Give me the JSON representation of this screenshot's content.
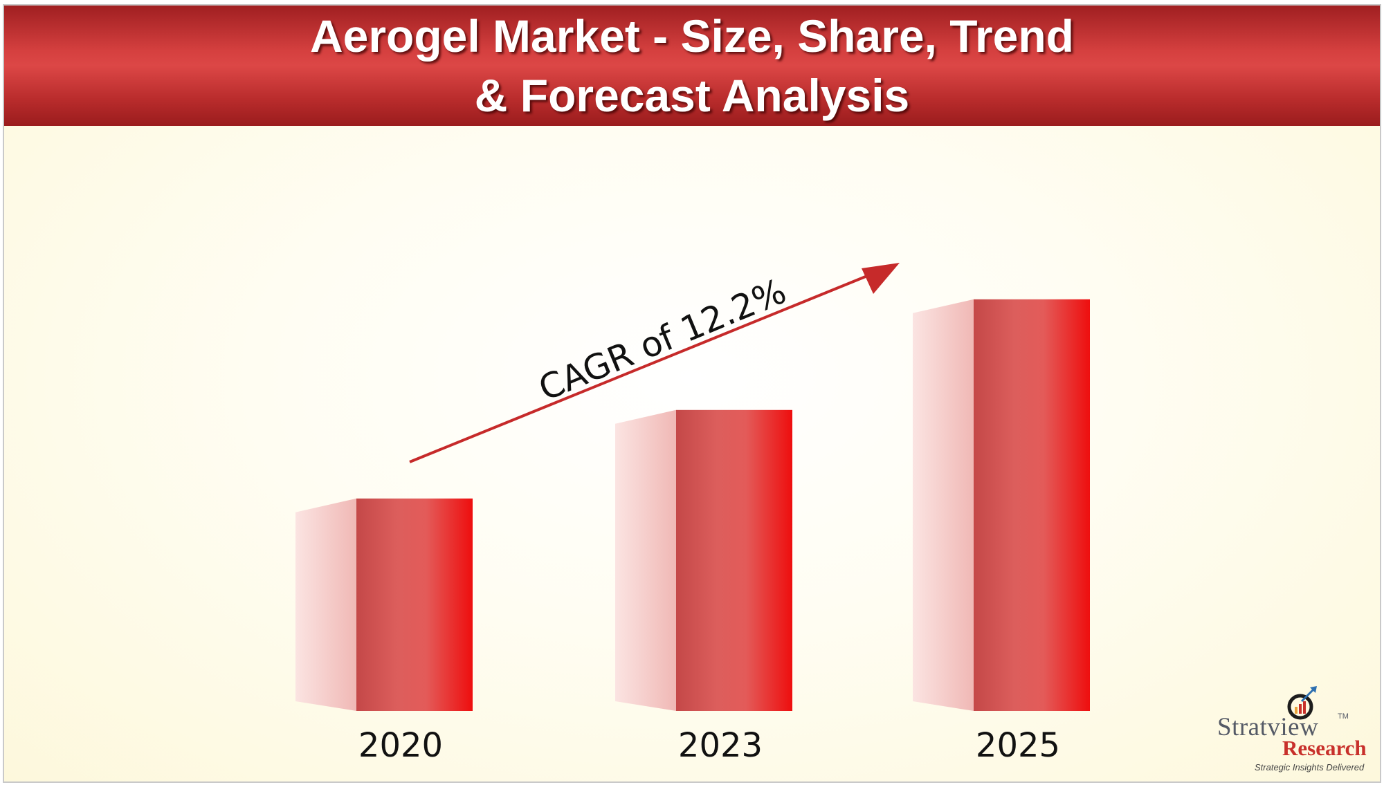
{
  "banner": {
    "title_line1": "Aerogel Market - Size, Share, Trend",
    "title_line2": "& Forecast Analysis"
  },
  "chart_data": {
    "type": "bar",
    "categories": [
      "2020",
      "2023",
      "2025"
    ],
    "values": [
      0.48,
      0.68,
      0.93
    ],
    "value_scale": "relative bar height (fraction of plot height); no axis values printed",
    "annotations": [
      {
        "text": "CAGR of 12.2%",
        "kind": "arrow",
        "from": "2020",
        "to": "2025"
      }
    ],
    "grid": false,
    "legend": "none"
  },
  "colors": {
    "bar_front": "#d85050",
    "bar_front_right": "#ee1010",
    "bar_side": "#f4c4c2",
    "arrow": "#c62a2a",
    "banner": "#c93535"
  },
  "logo": {
    "brand_top": "Stratview",
    "trademark": "TM",
    "brand_bottom": "Research",
    "tagline": "Strategic Insights Delivered",
    "icon": "magnifier-chart-icon"
  }
}
